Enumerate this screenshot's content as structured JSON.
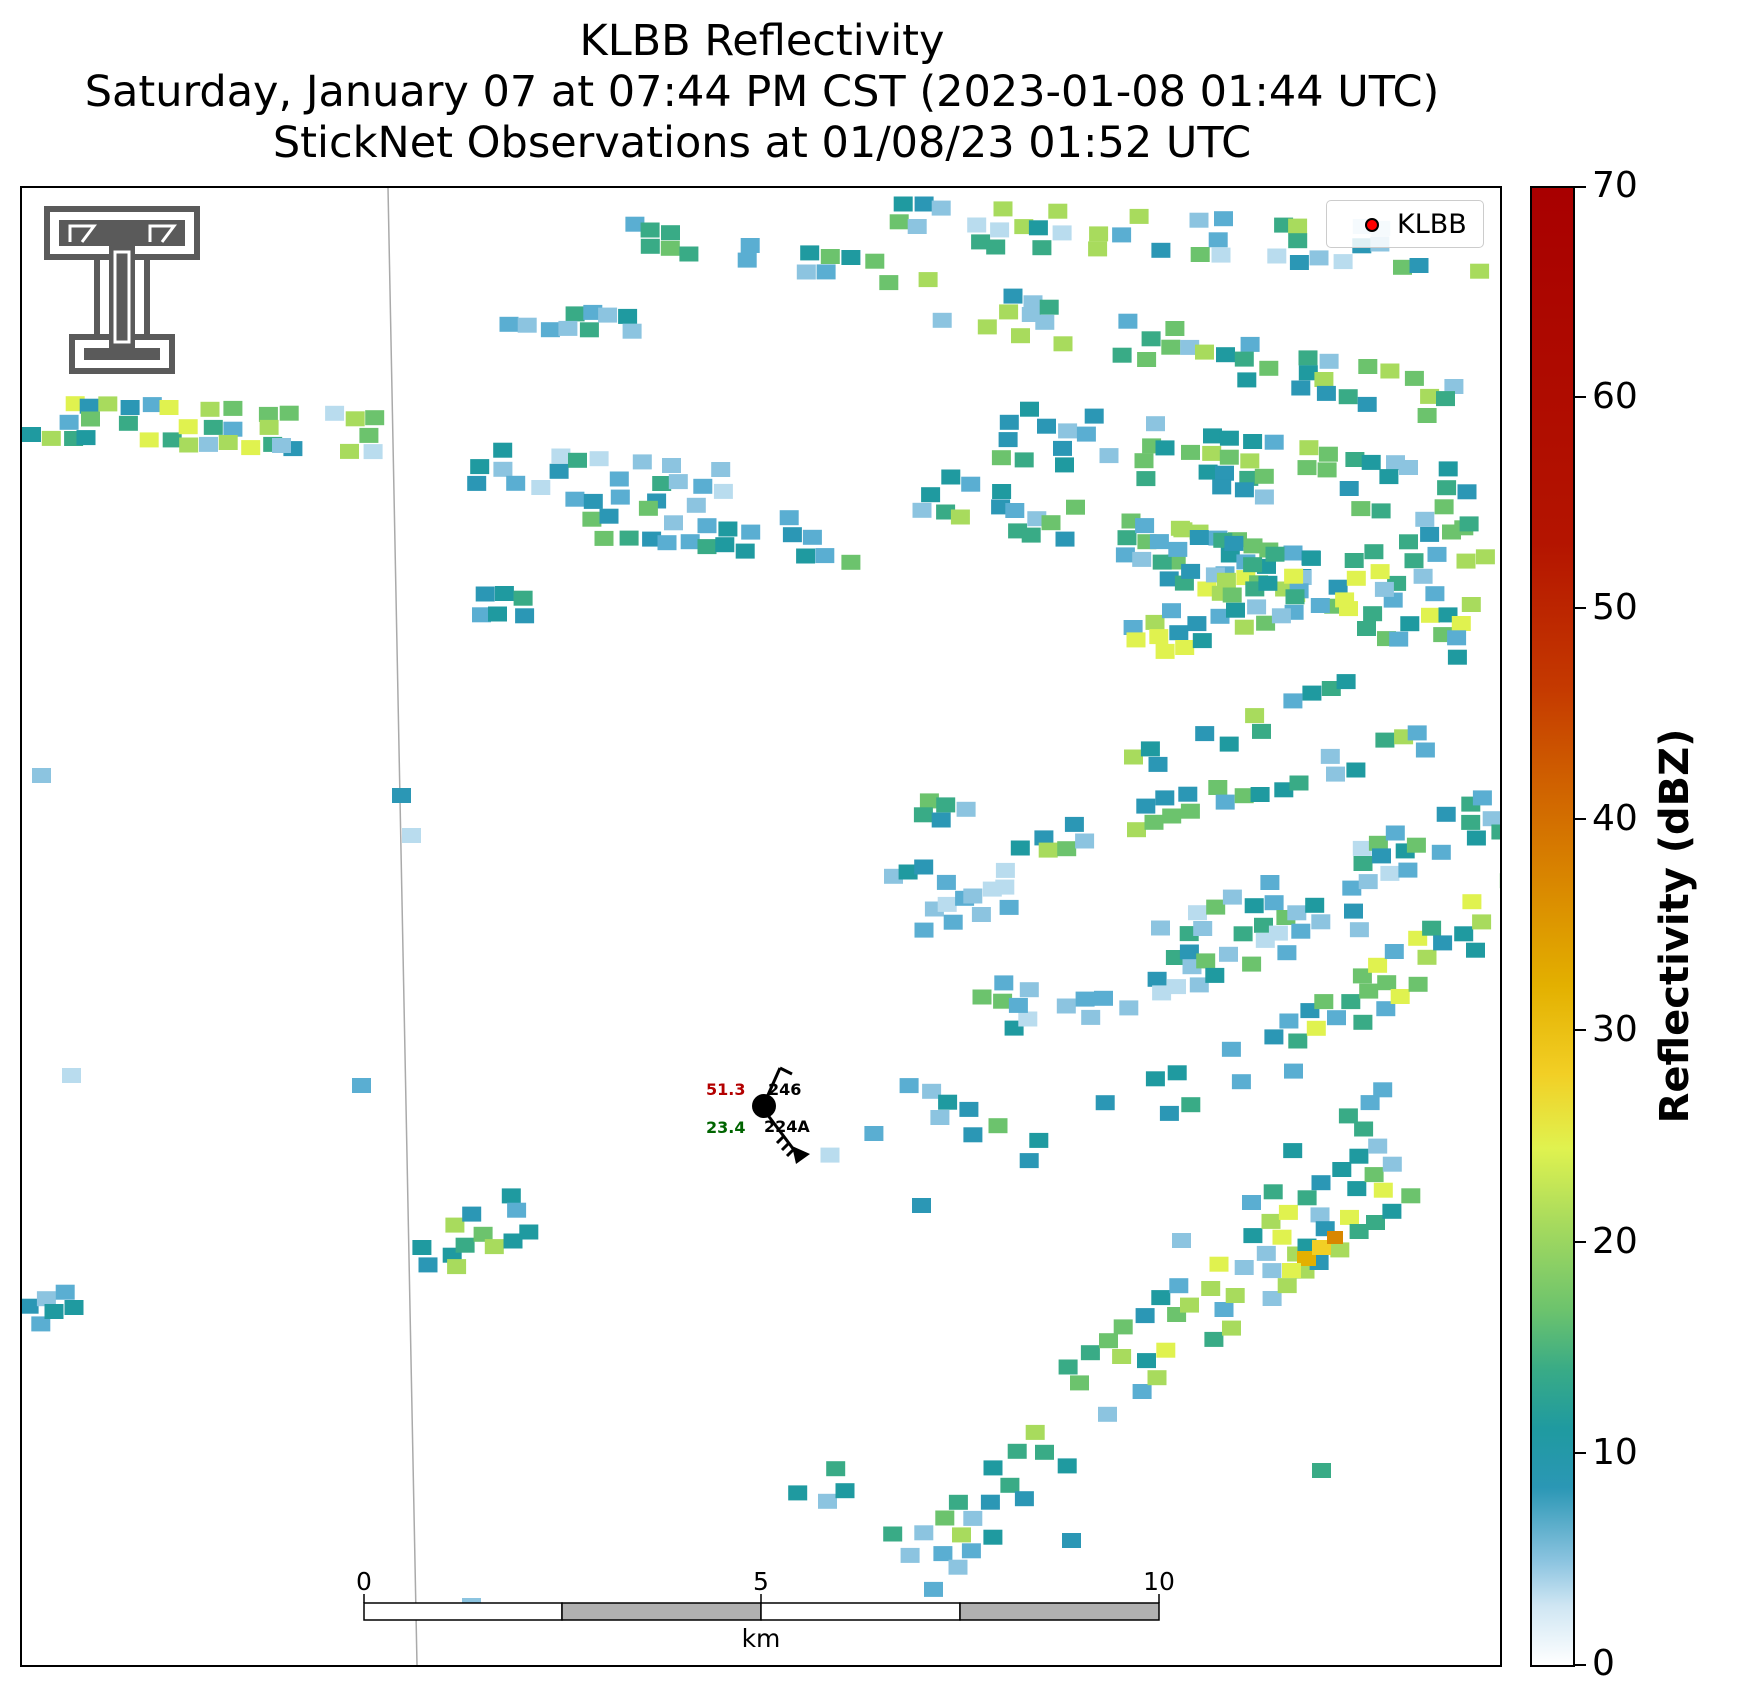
{
  "title": {
    "line1": "KLBB Reflectivity",
    "line2": "Saturday, January 07 at 07:44 PM CST (2023-01-08 01:44 UTC)",
    "line3": "StickNet Observations at 01/08/23 01:52 UTC"
  },
  "legend": {
    "label": "KLBB",
    "marker_color": "#ff0000"
  },
  "colorbar": {
    "title": "Reflectivity (dBZ)",
    "ticks": [
      "0",
      "10",
      "20",
      "30",
      "40",
      "50",
      "60",
      "70"
    ],
    "range": [
      0,
      70
    ],
    "colors": [
      "#ffffff",
      "#8cc4e0",
      "#2b97b5",
      "#39ab86",
      "#a8db5d",
      "#e0f24f",
      "#e3b000",
      "#cf5f00",
      "#a80000"
    ]
  },
  "scale_bar": {
    "tick_labels": [
      "0",
      "5",
      "10"
    ],
    "unit": "km"
  },
  "station": {
    "temperature": "51.3",
    "dewpoint": "23.4",
    "pressure_code": "246",
    "station_id": "224A"
  },
  "logo": {
    "name": "Texas Tech Double T",
    "color": "#5a5a5a"
  }
}
